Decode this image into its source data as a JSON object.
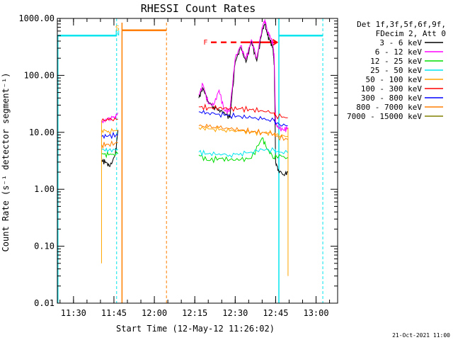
{
  "chart_data": {
    "type": "line",
    "title": "RHESSI Count Rates",
    "xlabel": "Start Time (12-May-12 11:26:02)",
    "ylabel": "Count Rate (s⁻¹ detector segment⁻¹)",
    "xlim": [
      684,
      788
    ],
    "x_unit": "minutes after 00:00 UT",
    "ylim": [
      0.01,
      1000
    ],
    "yscale": "log",
    "x_ticks": [
      {
        "value": 690,
        "label": "11:30"
      },
      {
        "value": 705,
        "label": "11:45"
      },
      {
        "value": 720,
        "label": "12:00"
      },
      {
        "value": 735,
        "label": "12:15"
      },
      {
        "value": 750,
        "label": "12:30"
      },
      {
        "value": 765,
        "label": "12:45"
      },
      {
        "value": 780,
        "label": "13:00"
      }
    ],
    "y_ticks": [
      {
        "value": 1000,
        "label": "1000.00"
      },
      {
        "value": 100,
        "label": "100.00"
      },
      {
        "value": 10,
        "label": "10.00"
      },
      {
        "value": 1,
        "label": "1.00"
      },
      {
        "value": 0.1,
        "label": "0.10"
      },
      {
        "value": 0.01,
        "label": "0.01"
      }
    ],
    "legend_header": [
      "Det 1f,3f,5f,6f,9f,",
      "FDecim 2, Att 0"
    ],
    "legend_position": "outside-right",
    "series": [
      {
        "name": "3 - 6 keV",
        "color": "#000000",
        "x": [
          700.5,
          702,
          703.5,
          705.5,
          706.5,
          736.5,
          738,
          740,
          742,
          744,
          746,
          748,
          750,
          752,
          754,
          756,
          758,
          760,
          761,
          762,
          763,
          764,
          764.5,
          765,
          766,
          768,
          769.5
        ],
        "y": [
          3.2,
          3.0,
          2.5,
          4.0,
          11,
          40,
          60,
          35,
          28,
          25,
          22,
          18,
          170,
          310,
          170,
          400,
          180,
          600,
          800,
          500,
          400,
          300,
          150,
          3.0,
          2.2,
          1.8,
          2.0
        ]
      },
      {
        "name": "6 - 12 keV",
        "color": "#ff00ff",
        "x": [
          700.5,
          702,
          703.5,
          705.5,
          706.5,
          736.5,
          738,
          740,
          742,
          744,
          746,
          748,
          750,
          752,
          754,
          756,
          758,
          760,
          761,
          762,
          763,
          764,
          764.5,
          765,
          766,
          768,
          769.5
        ],
        "y": [
          15,
          17,
          18,
          19,
          22,
          45,
          70,
          32,
          30,
          55,
          24,
          24,
          200,
          330,
          190,
          420,
          200,
          700,
          960,
          600,
          480,
          360,
          200,
          14,
          12,
          11,
          12
        ]
      },
      {
        "name": "12 - 25 keV",
        "color": "#00dd00",
        "x": [
          700.5,
          703,
          706.5,
          736.5,
          740,
          744,
          748,
          752,
          756,
          760,
          762,
          764.5,
          765,
          769.5
        ],
        "y": [
          4.2,
          4.0,
          4.2,
          4.0,
          3.2,
          3.5,
          3.3,
          3.3,
          3.5,
          8.0,
          5.0,
          3.5,
          4.0,
          3.6
        ]
      },
      {
        "name": "25 - 50 keV",
        "color": "#00e5ee",
        "x": [
          700.5,
          703,
          706.5,
          736.5,
          740,
          744,
          748,
          752,
          756,
          760,
          764.5,
          765,
          769.5
        ],
        "y": [
          5.0,
          4.8,
          5.0,
          4.5,
          4.2,
          4.2,
          4.0,
          4.3,
          4.5,
          5.0,
          4.8,
          4.5,
          4.4
        ]
      },
      {
        "name": "50 - 100 keV",
        "color": "#ffa500",
        "x": [
          700.5,
          703,
          706.5,
          736.5,
          740,
          744,
          748,
          752,
          756,
          760,
          764.5,
          765,
          769.5
        ],
        "y": [
          11,
          10.5,
          11,
          12,
          11.5,
          11,
          10.5,
          10.5,
          10,
          10,
          9.5,
          9,
          8.5
        ]
      },
      {
        "name": "100 - 300 keV",
        "color": "#ff0000",
        "x": [
          700.5,
          703,
          706.5,
          736.5,
          740,
          744,
          748,
          752,
          756,
          760,
          764.5,
          765,
          769.5
        ],
        "y": [
          16,
          16.5,
          17,
          28,
          27,
          27,
          26,
          26,
          25,
          24,
          22,
          20,
          18
        ]
      },
      {
        "name": "300 - 800 keV",
        "color": "#0000ff",
        "x": [
          700.5,
          703,
          706.5,
          736.5,
          740,
          744,
          748,
          752,
          756,
          760,
          764.5,
          765,
          769.5
        ],
        "y": [
          8.5,
          8.7,
          9.0,
          23,
          22,
          21,
          20,
          19,
          18,
          17,
          16,
          14,
          13
        ]
      },
      {
        "name": "800 - 7000 keV",
        "color": "#ff7f00",
        "x": [
          700.5,
          703,
          706.5,
          736.5,
          740,
          744,
          748,
          752,
          756,
          760,
          764.5,
          765,
          769.5
        ],
        "y": [
          6.0,
          6.2,
          6.5,
          13,
          12.5,
          12,
          11.5,
          11,
          10.5,
          10,
          9.5,
          8.5,
          7.5
        ]
      },
      {
        "name": "7000 - 15000 keV",
        "color": "#808000",
        "x": [],
        "y": []
      }
    ],
    "annotations": [
      {
        "label": "S",
        "color": "#ffa500",
        "x": 706.3
      },
      {
        "label": "N",
        "color": "#00e5ee",
        "x": 706.3
      },
      {
        "label": "F",
        "color": "#ff0000",
        "x": 739
      }
    ],
    "footer_date": "21-Oct-2021 11:00"
  }
}
